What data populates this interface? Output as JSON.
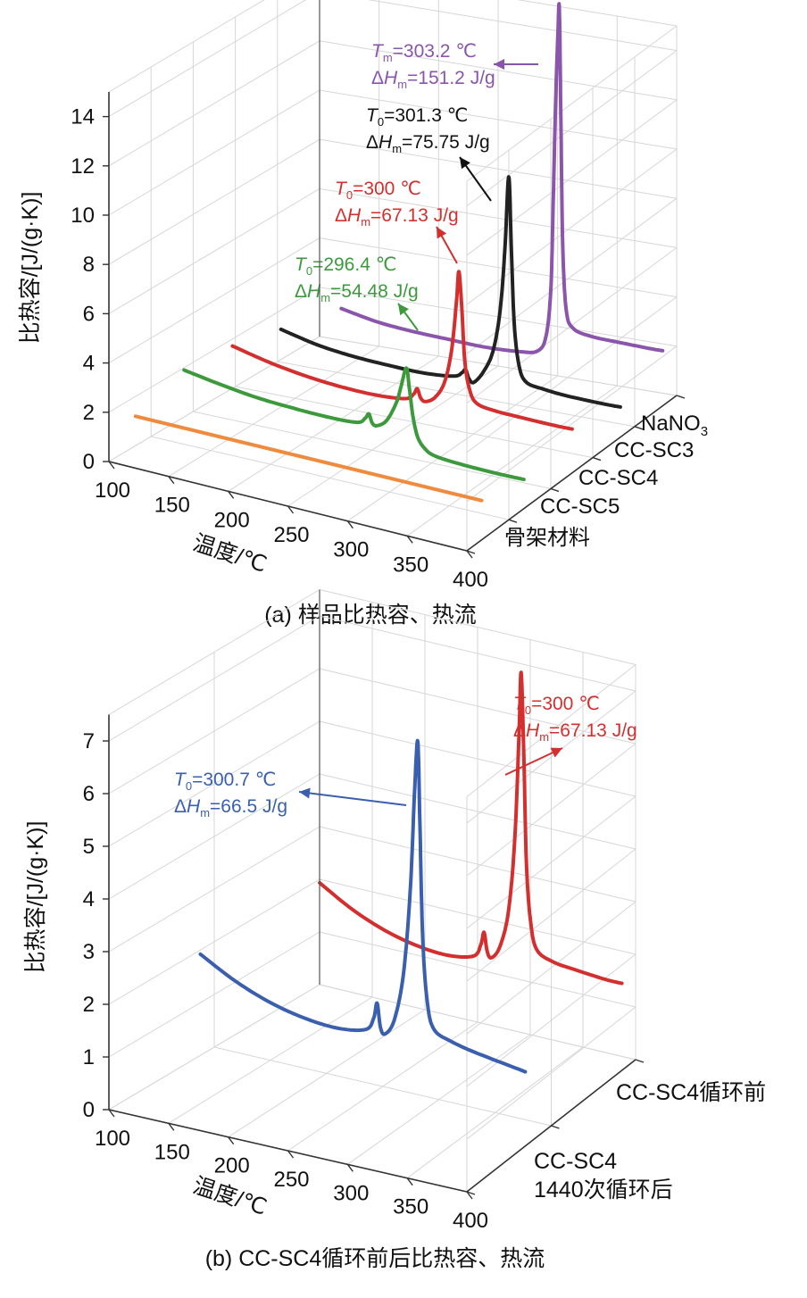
{
  "chart_data": [
    {
      "type": "line",
      "panel": "a",
      "caption": "(a) 样品比热容、热流",
      "xlabel": "温度/℃",
      "ylabel": "比热容/[J/(g·K)]",
      "xlim": [
        100,
        400
      ],
      "ylim": [
        0,
        15
      ],
      "x_ticks": [
        "100",
        "150",
        "200",
        "250",
        "300",
        "350",
        "400"
      ],
      "y_ticks": [
        "0",
        "2",
        "4",
        "6",
        "8",
        "10",
        "12",
        "14"
      ],
      "series_axis_labels": [
        "NaNO3",
        "CC-SC3",
        "CC-SC4",
        "CC-SC5",
        "骨架材料"
      ],
      "series": [
        {
          "name": "NaNO3",
          "color": "#8a55aa",
          "x": [
            120,
            150,
            180,
            210,
            240,
            270,
            285,
            292,
            296,
            298,
            300,
            302,
            303.2,
            304.5,
            306,
            309,
            315,
            330,
            350,
            380,
            390
          ],
          "y": [
            1.35,
            1.05,
            0.9,
            0.82,
            0.75,
            0.8,
            0.95,
            1.6,
            3.5,
            7.0,
            11.0,
            14.0,
            15.0,
            10.5,
            5.5,
            2.8,
            2.1,
            1.9,
            1.85,
            1.8,
            1.8
          ]
        },
        {
          "name": "CC-SC3",
          "color": "#222222",
          "x": [
            110,
            140,
            170,
            200,
            230,
            255,
            262,
            265,
            268,
            272,
            280,
            288,
            294,
            298,
            301.3,
            303.5,
            306,
            310,
            316,
            330,
            350,
            380,
            395
          ],
          "y": [
            1.6,
            1.25,
            1.05,
            0.95,
            0.9,
            1.0,
            1.2,
            1.35,
            1.0,
            0.9,
            1.4,
            2.3,
            4.0,
            6.5,
            9.5,
            6.5,
            3.5,
            1.9,
            1.3,
            1.15,
            1.05,
            1.0,
            1.0
          ]
        },
        {
          "name": "CC-SC4",
          "color": "#d32f2f",
          "x": [
            110,
            140,
            170,
            200,
            230,
            255,
            262,
            265,
            268,
            272,
            280,
            288,
            294,
            298,
            300,
            302.5,
            305,
            309,
            315,
            330,
            350,
            380,
            395
          ],
          "y": [
            2.1,
            1.75,
            1.5,
            1.35,
            1.3,
            1.4,
            1.65,
            1.9,
            1.55,
            1.45,
            1.7,
            2.4,
            3.8,
            5.8,
            7.0,
            5.5,
            3.4,
            2.3,
            1.8,
            1.65,
            1.6,
            1.55,
            1.55
          ]
        },
        {
          "name": "CC-SC5",
          "color": "#3c9a3c",
          "x": [
            110,
            140,
            170,
            200,
            230,
            255,
            262,
            265,
            268,
            272,
            280,
            288,
            292,
            296.4,
            299,
            302,
            306,
            312,
            320,
            340,
            370,
            395
          ],
          "y": [
            2.3,
            2.05,
            1.85,
            1.75,
            1.7,
            1.75,
            2.0,
            2.2,
            1.85,
            1.8,
            2.1,
            2.9,
            3.6,
            4.4,
            3.6,
            2.5,
            1.7,
            1.3,
            1.1,
            1.0,
            0.95,
            0.95
          ]
        },
        {
          "name": "骨架材料",
          "color": "#f08a3c",
          "x": [
            110,
            400
          ],
          "y": [
            1.6,
            1.6
          ]
        }
      ],
      "annotations": [
        {
          "series": "NaNO3",
          "line1": "=303.2 ℃",
          "sym1": "T",
          "sub1": "m",
          "line2": "=151.2 J/g",
          "sym2": "H",
          "sub2": "m",
          "color": "#8a55aa"
        },
        {
          "series": "CC-SC3",
          "line1": "=301.3 ℃",
          "sym1": "T",
          "sub1": "0",
          "line2": "=75.75 J/g",
          "sym2": "H",
          "sub2": "m",
          "color": "#111111"
        },
        {
          "series": "CC-SC4",
          "line1": "=300 ℃",
          "sym1": "T",
          "sub1": "0",
          "line2": "=67.13 J/g",
          "sym2": "H",
          "sub2": "m",
          "color": "#d32f2f"
        },
        {
          "series": "CC-SC5",
          "line1": "=296.4 ℃",
          "sym1": "T",
          "sub1": "0",
          "line2": "=54.48 J/g",
          "sym2": "H",
          "sub2": "m",
          "color": "#3c9a3c"
        }
      ]
    },
    {
      "type": "line",
      "panel": "b",
      "caption": "(b) CC-SC4循环前后比热容、热流",
      "xlabel": "温度/℃",
      "ylabel": "比热容/[J/(g·K)]",
      "xlim": [
        100,
        400
      ],
      "ylim": [
        0,
        7.5
      ],
      "x_ticks": [
        "100",
        "150",
        "200",
        "250",
        "300",
        "350",
        "400"
      ],
      "y_ticks": [
        "0",
        "1",
        "2",
        "3",
        "4",
        "5",
        "6",
        "7"
      ],
      "series_axis_labels": [
        "CC-SC4循环前",
        "CC-SC4",
        "1440次循环后"
      ],
      "series": [
        {
          "name": "CC-SC4循环前",
          "color": "#d32f2f",
          "x": [
            110,
            140,
            170,
            200,
            230,
            255,
            262,
            265,
            268,
            272,
            280,
            288,
            294,
            298,
            300,
            302.5,
            305,
            309,
            315,
            330,
            350,
            380,
            395
          ],
          "y": [
            2.1,
            1.75,
            1.5,
            1.35,
            1.3,
            1.4,
            1.65,
            1.9,
            1.55,
            1.45,
            1.7,
            2.4,
            3.8,
            5.8,
            7.0,
            5.5,
            3.4,
            2.3,
            1.8,
            1.65,
            1.6,
            1.55,
            1.55
          ]
        },
        {
          "name": "CC-SC4 1440次循环后",
          "color": "#3a5fae",
          "x": [
            110,
            140,
            170,
            200,
            230,
            255,
            262,
            265,
            268,
            272,
            280,
            288,
            294,
            298,
            300.7,
            302.5,
            305,
            309,
            315,
            330,
            350,
            380,
            395
          ],
          "y": [
            2.1,
            1.75,
            1.5,
            1.35,
            1.3,
            1.4,
            1.65,
            1.95,
            1.5,
            1.4,
            1.7,
            2.6,
            4.2,
            6.2,
            7.1,
            5.6,
            3.4,
            2.2,
            1.7,
            1.55,
            1.45,
            1.35,
            1.3
          ]
        }
      ],
      "annotations": [
        {
          "series": "CC-SC4 1440次循环后",
          "line1": "=300.7 ℃",
          "sym1": "T",
          "sub1": "0",
          "line2": "=66.5 J/g",
          "sym2": "H",
          "sub2": "m",
          "color": "#3a5fae"
        },
        {
          "series": "CC-SC4循环前",
          "line1": "=300 ℃",
          "sym1": "T",
          "sub1": "0",
          "line2": "=67.13 J/g",
          "sym2": "H",
          "sub2": "m",
          "color": "#d32f2f"
        }
      ]
    }
  ]
}
